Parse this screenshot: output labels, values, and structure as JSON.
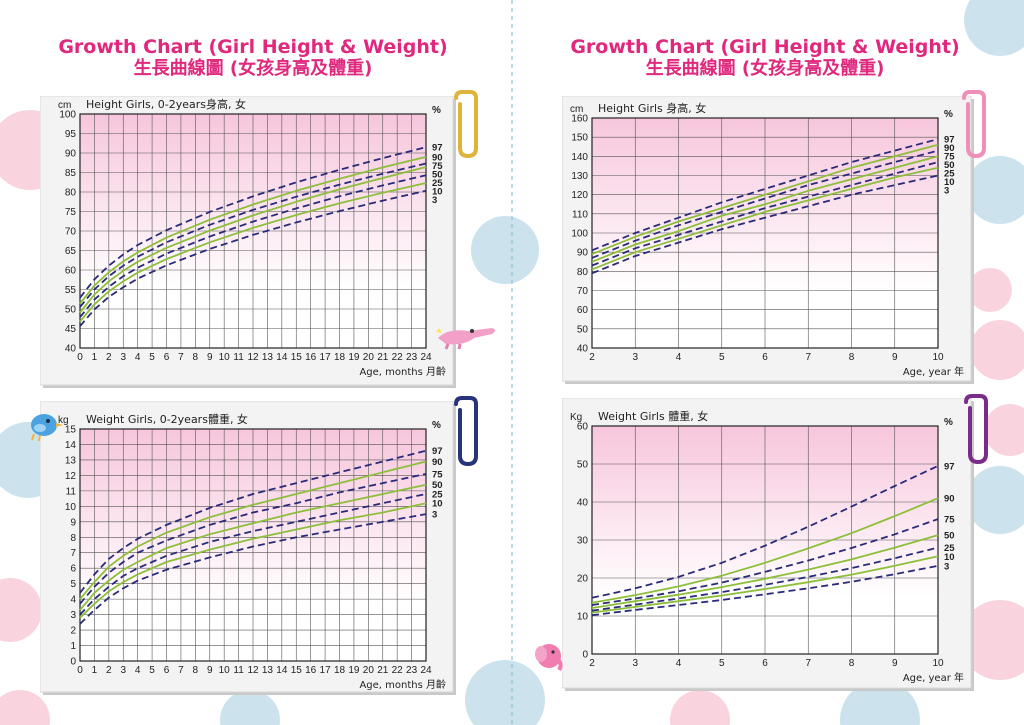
{
  "colors": {
    "title": "#e0287d",
    "dashed": "#2a2a7a",
    "solid": "#8cbf3a",
    "grid_top": "#f7c6dc",
    "grid_bottom": "#ffffff",
    "dot_pink": "#f8c9d6",
    "dot_blue": "#bfdcea",
    "clip_gold": "#e0b43a",
    "clip_navy": "#27337a",
    "clip_pink": "#ef8fb8",
    "clip_purple": "#7a2c8a"
  },
  "left_page": {
    "title": "Growth Chart (Girl Height & Weight)",
    "subtitle": "生長曲線圖 (女孩身高及體重)"
  },
  "right_page": {
    "title": "Growth Chart (Girl Height & Weight)",
    "subtitle": "生長曲線圖 (女孩身高及體重)"
  },
  "decorations": [
    "paperclip-icon",
    "paperclip-icon",
    "paperclip-icon",
    "paperclip-icon",
    "bird-icon",
    "crocodile-icon",
    "elephant-icon"
  ],
  "chart_data": [
    {
      "id": "height_0_2",
      "type": "line",
      "title": "Height Girls, 0-2years身高, 女",
      "unit_label": "cm",
      "xlabel": "Age, months 月齡",
      "percent_label": "%",
      "xlim": [
        0,
        24
      ],
      "ylim": [
        40,
        100
      ],
      "xticks": [
        0,
        1,
        2,
        3,
        4,
        5,
        6,
        7,
        8,
        9,
        10,
        11,
        12,
        13,
        14,
        15,
        16,
        17,
        18,
        19,
        20,
        21,
        22,
        23,
        24
      ],
      "yticks": [
        40,
        45,
        50,
        55,
        60,
        65,
        70,
        75,
        80,
        85,
        90,
        95,
        100
      ],
      "x": [
        0,
        1,
        2,
        3,
        4,
        6,
        9,
        12,
        15,
        18,
        21,
        24
      ],
      "series": [
        {
          "name": "97",
          "style": "dashed",
          "values": [
            52.9,
            57.6,
            61.1,
            64.0,
            66.4,
            70.2,
            74.9,
            78.9,
            82.5,
            85.7,
            88.7,
            91.5
          ]
        },
        {
          "name": "90",
          "style": "solid",
          "values": [
            51.4,
            56.0,
            59.4,
            62.2,
            64.5,
            68.3,
            72.9,
            76.8,
            80.3,
            83.4,
            86.3,
            89.0
          ]
        },
        {
          "name": "75",
          "style": "dashed",
          "values": [
            50.5,
            55.0,
            58.4,
            61.1,
            63.4,
            67.1,
            71.6,
            75.4,
            78.8,
            81.9,
            84.7,
            87.3
          ]
        },
        {
          "name": "50",
          "style": "solid",
          "values": [
            49.1,
            53.7,
            57.1,
            59.8,
            62.1,
            65.7,
            70.1,
            74.0,
            77.5,
            80.7,
            83.6,
            86.4
          ]
        },
        {
          "name": "25",
          "style": "dashed",
          "values": [
            47.9,
            52.4,
            55.7,
            58.4,
            60.6,
            64.2,
            68.6,
            72.4,
            75.8,
            78.9,
            81.7,
            84.3
          ]
        },
        {
          "name": "10",
          "style": "solid",
          "values": [
            46.8,
            51.2,
            54.5,
            57.1,
            59.3,
            62.8,
            67.1,
            70.8,
            74.1,
            77.1,
            79.8,
            82.3
          ]
        },
        {
          "name": "3",
          "style": "dashed",
          "values": [
            45.6,
            49.9,
            53.1,
            55.6,
            57.8,
            61.2,
            65.4,
            69.0,
            72.2,
            75.1,
            77.8,
            80.3
          ]
        }
      ]
    },
    {
      "id": "weight_0_2",
      "type": "line",
      "title": "Weight Girls, 0-2years體重, 女",
      "unit_label": "kg",
      "xlabel": "Age, months 月齡",
      "percent_label": "%",
      "xlim": [
        0,
        24
      ],
      "ylim": [
        0,
        15
      ],
      "xticks": [
        0,
        1,
        2,
        3,
        4,
        5,
        6,
        7,
        8,
        9,
        10,
        11,
        12,
        13,
        14,
        15,
        16,
        17,
        18,
        19,
        20,
        21,
        22,
        23,
        24
      ],
      "yticks": [
        0,
        1,
        2,
        3,
        4,
        5,
        6,
        7,
        8,
        9,
        10,
        11,
        12,
        13,
        14,
        15
      ],
      "x": [
        0,
        1,
        2,
        3,
        4,
        6,
        9,
        12,
        15,
        18,
        21,
        24
      ],
      "series": [
        {
          "name": "97",
          "style": "dashed",
          "values": [
            4.4,
            5.6,
            6.6,
            7.3,
            7.9,
            8.8,
            9.9,
            10.8,
            11.5,
            12.2,
            12.9,
            13.6
          ]
        },
        {
          "name": "90",
          "style": "solid",
          "values": [
            4.0,
            5.1,
            6.1,
            6.8,
            7.4,
            8.3,
            9.3,
            10.1,
            10.8,
            11.5,
            12.2,
            12.9
          ]
        },
        {
          "name": "75",
          "style": "dashed",
          "values": [
            3.7,
            4.8,
            5.7,
            6.4,
            7.0,
            7.8,
            8.8,
            9.6,
            10.2,
            10.9,
            11.5,
            12.1
          ]
        },
        {
          "name": "50",
          "style": "solid",
          "values": [
            3.3,
            4.4,
            5.2,
            5.9,
            6.4,
            7.3,
            8.2,
            8.9,
            9.6,
            10.2,
            10.8,
            11.4
          ]
        },
        {
          "name": "25",
          "style": "dashed",
          "values": [
            3.0,
            4.0,
            4.8,
            5.5,
            6.0,
            6.8,
            7.7,
            8.4,
            9.0,
            9.6,
            10.2,
            10.8
          ]
        },
        {
          "name": "10",
          "style": "solid",
          "values": [
            2.8,
            3.7,
            4.5,
            5.1,
            5.6,
            6.4,
            7.2,
            7.9,
            8.5,
            9.1,
            9.6,
            10.2
          ]
        },
        {
          "name": "3",
          "style": "dashed",
          "values": [
            2.4,
            3.3,
            4.1,
            4.7,
            5.2,
            5.9,
            6.7,
            7.4,
            8.0,
            8.5,
            9.0,
            9.5
          ]
        }
      ]
    },
    {
      "id": "height_2_10",
      "type": "line",
      "title": "Height Girls 身高, 女",
      "unit_label": "cm",
      "xlabel": "Age, year 年",
      "percent_label": "%",
      "xlim": [
        2,
        10
      ],
      "ylim": [
        40,
        160
      ],
      "xticks": [
        2,
        3,
        4,
        5,
        6,
        7,
        8,
        9,
        10
      ],
      "yticks": [
        40,
        50,
        60,
        70,
        80,
        90,
        100,
        110,
        120,
        130,
        140,
        150,
        160
      ],
      "x": [
        2,
        3,
        4,
        5,
        6,
        7,
        8,
        9,
        10
      ],
      "series": [
        {
          "name": "97",
          "style": "dashed",
          "values": [
            91,
            100,
            108,
            116,
            123,
            130,
            137,
            143,
            149
          ]
        },
        {
          "name": "90",
          "style": "solid",
          "values": [
            89,
            98,
            106,
            113,
            120,
            127,
            134,
            140,
            146
          ]
        },
        {
          "name": "75",
          "style": "dashed",
          "values": [
            87,
            96,
            104,
            111,
            118,
            125,
            131,
            137,
            143
          ]
        },
        {
          "name": "50",
          "style": "solid",
          "values": [
            85,
            94,
            101,
            109,
            115,
            122,
            128,
            134,
            140
          ]
        },
        {
          "name": "25",
          "style": "dashed",
          "values": [
            83,
            92,
            99,
            106,
            113,
            119,
            125,
            131,
            137
          ]
        },
        {
          "name": "10",
          "style": "solid",
          "values": [
            81,
            90,
            97,
            104,
            111,
            117,
            123,
            129,
            134
          ]
        },
        {
          "name": "3",
          "style": "dashed",
          "values": [
            79,
            88,
            95,
            102,
            108,
            114,
            120,
            125,
            130
          ]
        }
      ]
    },
    {
      "id": "weight_2_10",
      "type": "line",
      "title": "Weight Girls 體重, 女",
      "unit_label": "Kg",
      "xlabel": "Age, year 年",
      "percent_label": "%",
      "xlim": [
        2,
        10
      ],
      "ylim": [
        0,
        60
      ],
      "xticks": [
        2,
        3,
        4,
        5,
        6,
        7,
        8,
        9,
        10
      ],
      "yticks": [
        0,
        10,
        20,
        30,
        40,
        50,
        60
      ],
      "x": [
        2,
        3,
        4,
        5,
        6,
        7,
        8,
        9,
        10
      ],
      "series": [
        {
          "name": "97",
          "style": "dashed",
          "values": [
            14.8,
            17.3,
            20.3,
            24.0,
            28.5,
            33.5,
            38.8,
            44.2,
            49.5
          ]
        },
        {
          "name": "90",
          "style": "solid",
          "values": [
            13.5,
            15.5,
            17.8,
            20.6,
            24.0,
            27.8,
            31.8,
            36.3,
            41.0
          ]
        },
        {
          "name": "75",
          "style": "dashed",
          "values": [
            12.9,
            14.6,
            16.5,
            18.8,
            21.6,
            24.6,
            27.9,
            31.5,
            35.5
          ]
        },
        {
          "name": "50",
          "style": "solid",
          "values": [
            12.1,
            13.9,
            15.6,
            17.6,
            19.8,
            22.2,
            24.9,
            28.0,
            31.3
          ]
        },
        {
          "name": "25",
          "style": "dashed",
          "values": [
            11.4,
            13.0,
            14.6,
            16.3,
            18.2,
            20.3,
            22.6,
            25.2,
            28.0
          ]
        },
        {
          "name": "10",
          "style": "solid",
          "values": [
            10.9,
            12.4,
            13.9,
            15.4,
            17.1,
            18.9,
            20.9,
            23.2,
            25.7
          ]
        },
        {
          "name": "3",
          "style": "dashed",
          "values": [
            10.2,
            11.6,
            12.9,
            14.2,
            15.7,
            17.3,
            19.0,
            21.0,
            23.2
          ]
        }
      ]
    }
  ]
}
